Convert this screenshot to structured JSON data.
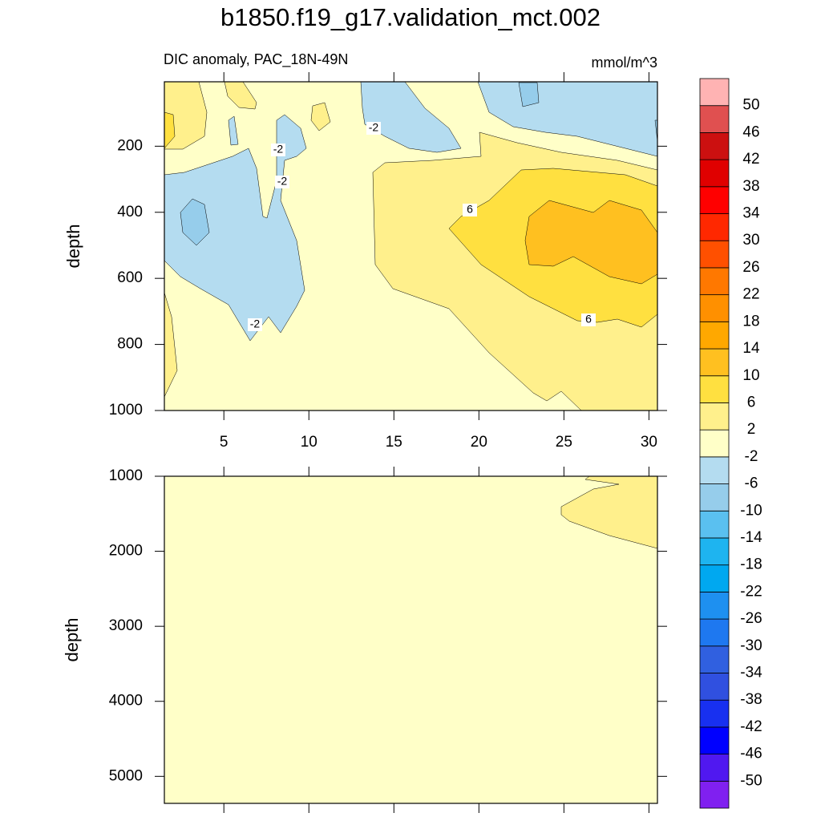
{
  "title": "b1850.f19_g17.validation_mct.002",
  "chart_data": [
    {
      "type": "contour",
      "subtitle": "DIC anomaly, PAC_18N-49N",
      "units": "mmol/m^3",
      "ylabel": "depth",
      "xlim": [
        1.5,
        30.5
      ],
      "xticks": [
        5,
        10,
        15,
        20,
        25,
        30
      ],
      "show_xtick_labels": true,
      "ylim": [
        1000,
        5
      ],
      "yticks": [
        200,
        400,
        600,
        800,
        1000
      ],
      "contour_labels": [
        -2,
        -2,
        -2,
        -2,
        6,
        6
      ]
    },
    {
      "type": "contour",
      "ylabel": "depth",
      "xlim": [
        1.5,
        30.5
      ],
      "xticks": [
        5,
        10,
        15,
        20,
        25,
        30
      ],
      "show_xtick_labels": false,
      "ylim": [
        5360,
        1000
      ],
      "yticks": [
        1000,
        2000,
        3000,
        4000,
        5000
      ]
    }
  ],
  "colorbar": {
    "levels": [
      -50,
      -46,
      -42,
      -38,
      -34,
      -30,
      -26,
      -22,
      -18,
      -14,
      -10,
      -6,
      -2,
      2,
      6,
      10,
      14,
      18,
      22,
      26,
      30,
      34,
      38,
      42,
      46,
      50
    ],
    "colors": [
      "#8020f0",
      "#5018f0",
      "#0000ff",
      "#1830f0",
      "#3050e0",
      "#3060e0",
      "#1e78f0",
      "#1e90f0",
      "#00a8f0",
      "#1eb4f0",
      "#5ac0f0",
      "#96cdeb",
      "#b4dcf0",
      "#ffffc8",
      "#fff08c",
      "#ffe040",
      "#ffc020",
      "#ffa800",
      "#ff9000",
      "#ff7800",
      "#ff5000",
      "#ff2800",
      "#ff0000",
      "#e00000",
      "#cc1010",
      "#e05050",
      "#ffb3b3"
    ]
  }
}
